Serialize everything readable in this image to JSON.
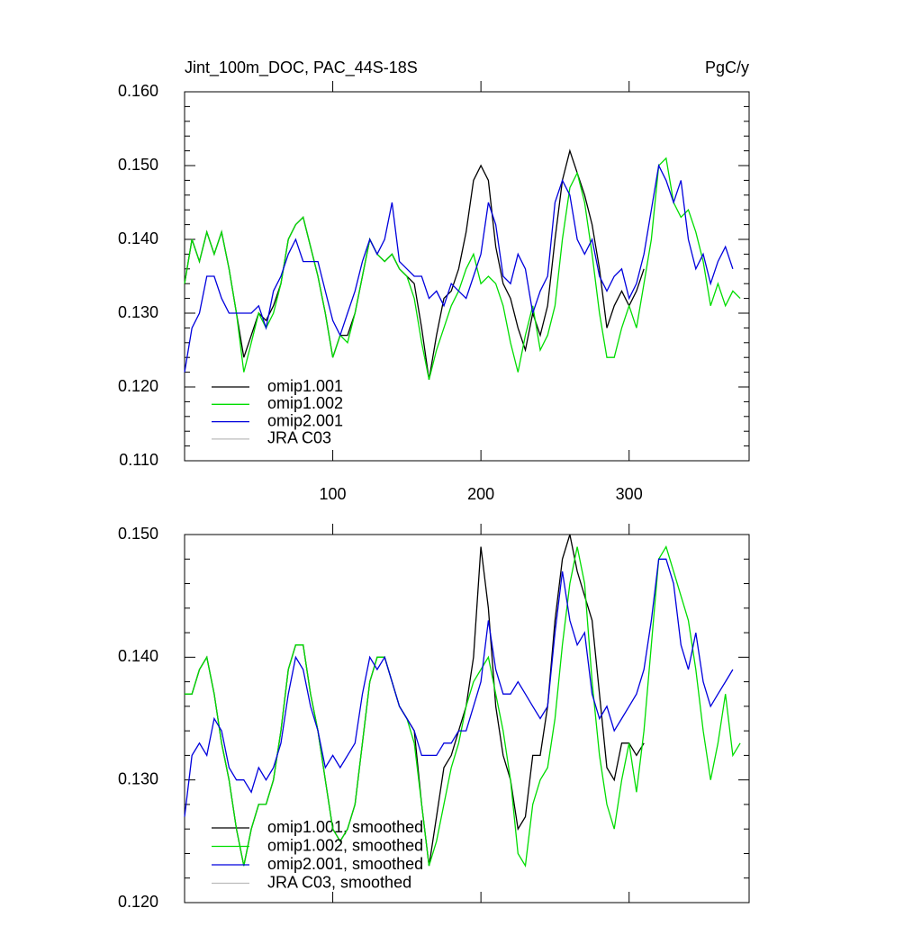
{
  "chart_data": [
    {
      "type": "line",
      "title": "Jint_100m_DOC, PAC_44S-18S",
      "units": "PgC/y",
      "x": [
        0,
        5,
        10,
        15,
        20,
        25,
        30,
        35,
        40,
        45,
        50,
        55,
        60,
        65,
        70,
        75,
        80,
        85,
        90,
        95,
        100,
        105,
        110,
        115,
        120,
        125,
        130,
        135,
        140,
        145,
        150,
        155,
        160,
        165,
        170,
        175,
        180,
        185,
        190,
        195,
        200,
        205,
        210,
        215,
        220,
        225,
        230,
        235,
        240,
        245,
        250,
        255,
        260,
        265,
        270,
        275,
        280,
        285,
        290,
        295,
        300,
        305,
        310,
        315,
        320,
        325,
        330,
        335,
        340,
        345,
        350,
        355,
        360,
        365,
        370,
        375
      ],
      "xlim": [
        0,
        381
      ],
      "xticks": [
        100,
        200,
        300
      ],
      "ylim": [
        0.11,
        0.16
      ],
      "yticks": [
        {
          "value": 0.16,
          "label": "0.160"
        },
        {
          "value": 0.15,
          "label": "0.150"
        },
        {
          "value": 0.14,
          "label": "0.140"
        },
        {
          "value": 0.13,
          "label": "0.130"
        },
        {
          "value": 0.12,
          "label": "0.120"
        },
        {
          "value": 0.11,
          "label": "0.110"
        }
      ],
      "series": [
        {
          "name": "omip1.001",
          "color": "#000000",
          "values": [
            0.134,
            0.14,
            0.137,
            0.141,
            0.138,
            0.141,
            0.136,
            0.13,
            0.124,
            0.127,
            0.13,
            0.129,
            0.131,
            0.134,
            0.14,
            0.142,
            0.143,
            0.139,
            0.135,
            0.13,
            0.124,
            0.127,
            0.127,
            0.13,
            0.135,
            0.14,
            0.138,
            0.137,
            0.138,
            0.136,
            0.135,
            0.134,
            0.128,
            0.121,
            0.127,
            0.132,
            0.133,
            0.136,
            0.141,
            0.148,
            0.15,
            0.148,
            0.139,
            0.134,
            0.132,
            0.128,
            0.125,
            0.13,
            0.127,
            0.131,
            0.14,
            0.148,
            0.152,
            0.149,
            0.146,
            0.142,
            0.136,
            0.128,
            0.131,
            0.133,
            0.131,
            0.133,
            0.136,
            null,
            null,
            null,
            null,
            null,
            null,
            null,
            null,
            null,
            null,
            null,
            null,
            null
          ]
        },
        {
          "name": "omip1.002",
          "color": "#00dd00",
          "values": [
            0.134,
            0.14,
            0.137,
            0.141,
            0.138,
            0.141,
            0.136,
            0.13,
            0.122,
            0.126,
            0.13,
            0.128,
            0.13,
            0.134,
            0.14,
            0.142,
            0.143,
            0.139,
            0.135,
            0.13,
            0.124,
            0.127,
            0.126,
            0.13,
            0.135,
            0.14,
            0.138,
            0.137,
            0.138,
            0.136,
            0.135,
            0.132,
            0.126,
            0.121,
            0.125,
            0.128,
            0.131,
            0.133,
            0.136,
            0.138,
            0.134,
            0.135,
            0.134,
            0.131,
            0.126,
            0.122,
            0.127,
            0.131,
            0.125,
            0.127,
            0.131,
            0.14,
            0.147,
            0.149,
            0.145,
            0.138,
            0.13,
            0.124,
            0.124,
            0.128,
            0.131,
            0.128,
            0.134,
            0.14,
            0.15,
            0.151,
            0.145,
            0.143,
            0.144,
            0.141,
            0.137,
            0.131,
            0.134,
            0.131,
            0.133,
            0.132
          ]
        },
        {
          "name": "omip2.001",
          "color": "#0000dd",
          "values": [
            0.122,
            0.128,
            0.13,
            0.135,
            0.135,
            0.132,
            0.13,
            0.13,
            0.13,
            0.13,
            0.131,
            0.128,
            0.133,
            0.135,
            0.138,
            0.14,
            0.137,
            0.137,
            0.137,
            0.133,
            0.129,
            0.127,
            0.13,
            0.133,
            0.137,
            0.14,
            0.138,
            0.14,
            0.145,
            0.137,
            0.136,
            0.135,
            0.135,
            0.132,
            0.133,
            0.131,
            0.134,
            0.133,
            0.132,
            0.135,
            0.138,
            0.145,
            0.142,
            0.135,
            0.134,
            0.138,
            0.136,
            0.13,
            0.133,
            0.135,
            0.145,
            0.148,
            0.146,
            0.14,
            0.138,
            0.14,
            0.135,
            0.133,
            0.135,
            0.136,
            0.132,
            0.134,
            0.138,
            0.144,
            0.15,
            0.148,
            0.145,
            0.148,
            0.14,
            0.136,
            0.138,
            0.134,
            0.137,
            0.139,
            0.136,
            null
          ]
        },
        {
          "name": "JRA C03",
          "color": "#bbbbbb",
          "values": [
            null,
            null,
            null,
            null,
            null,
            null,
            null,
            null,
            null,
            null,
            null,
            null,
            null,
            null,
            null,
            null,
            null,
            null,
            null,
            null,
            null,
            null,
            null,
            null,
            null,
            null,
            null,
            null,
            null,
            null,
            null,
            null,
            null,
            null,
            null,
            null,
            null,
            null,
            null,
            null,
            null,
            null,
            null,
            null,
            null,
            null,
            null,
            null,
            null,
            null,
            null,
            null,
            null,
            null,
            null,
            null,
            null,
            null,
            null,
            null,
            null,
            null,
            null,
            null,
            null,
            null,
            null,
            null,
            null,
            null,
            null,
            null,
            null,
            null,
            null,
            null
          ]
        }
      ]
    },
    {
      "type": "line",
      "x": [
        0,
        5,
        10,
        15,
        20,
        25,
        30,
        35,
        40,
        45,
        50,
        55,
        60,
        65,
        70,
        75,
        80,
        85,
        90,
        95,
        100,
        105,
        110,
        115,
        120,
        125,
        130,
        135,
        140,
        145,
        150,
        155,
        160,
        165,
        170,
        175,
        180,
        185,
        190,
        195,
        200,
        205,
        210,
        215,
        220,
        225,
        230,
        235,
        240,
        245,
        250,
        255,
        260,
        265,
        270,
        275,
        280,
        285,
        290,
        295,
        300,
        305,
        310,
        315,
        320,
        325,
        330,
        335,
        340,
        345,
        350,
        355,
        360,
        365,
        370,
        375
      ],
      "xlim": [
        0,
        381
      ],
      "xticks": [
        100,
        200,
        300
      ],
      "ylim": [
        0.12,
        0.15
      ],
      "yticks": [
        {
          "value": 0.15,
          "label": "0.150"
        },
        {
          "value": 0.14,
          "label": "0.140"
        },
        {
          "value": 0.13,
          "label": "0.130"
        },
        {
          "value": 0.12,
          "label": "0.120"
        }
      ],
      "series": [
        {
          "name": "omip1.001, smoothed",
          "color": "#000000",
          "values": [
            0.137,
            0.137,
            0.139,
            0.14,
            0.137,
            0.133,
            0.13,
            0.126,
            0.123,
            0.126,
            0.128,
            0.128,
            0.13,
            0.134,
            0.139,
            0.141,
            0.141,
            0.137,
            0.134,
            0.13,
            0.126,
            0.125,
            0.126,
            0.128,
            0.133,
            0.138,
            0.14,
            0.14,
            0.138,
            0.136,
            0.135,
            0.134,
            0.128,
            0.123,
            0.127,
            0.131,
            0.132,
            0.134,
            0.136,
            0.14,
            0.149,
            0.144,
            0.136,
            0.132,
            0.13,
            0.126,
            0.127,
            0.132,
            0.132,
            0.136,
            0.143,
            0.148,
            0.15,
            0.147,
            0.145,
            0.143,
            0.137,
            0.131,
            0.13,
            0.133,
            0.133,
            0.132,
            0.133,
            null,
            null,
            null,
            null,
            null,
            null,
            null,
            null,
            null,
            null,
            null,
            null,
            null
          ]
        },
        {
          "name": "omip1.002, smoothed",
          "color": "#00dd00",
          "values": [
            0.137,
            0.137,
            0.139,
            0.14,
            0.137,
            0.133,
            0.13,
            0.126,
            0.123,
            0.126,
            0.128,
            0.128,
            0.13,
            0.134,
            0.139,
            0.141,
            0.141,
            0.137,
            0.134,
            0.13,
            0.126,
            0.125,
            0.126,
            0.128,
            0.133,
            0.138,
            0.14,
            0.14,
            0.138,
            0.136,
            0.135,
            0.133,
            0.128,
            0.123,
            0.125,
            0.128,
            0.131,
            0.133,
            0.136,
            0.138,
            0.139,
            0.14,
            0.137,
            0.134,
            0.13,
            0.124,
            0.123,
            0.128,
            0.13,
            0.131,
            0.135,
            0.141,
            0.146,
            0.149,
            0.146,
            0.138,
            0.132,
            0.128,
            0.126,
            0.13,
            0.133,
            0.129,
            0.134,
            0.141,
            0.148,
            0.149,
            0.147,
            0.145,
            0.143,
            0.139,
            0.134,
            0.13,
            0.133,
            0.137,
            0.132,
            0.133
          ]
        },
        {
          "name": "omip2.001, smoothed",
          "color": "#0000dd",
          "values": [
            0.127,
            0.132,
            0.133,
            0.132,
            0.135,
            0.134,
            0.131,
            0.13,
            0.13,
            0.129,
            0.131,
            0.13,
            0.131,
            0.133,
            0.137,
            0.14,
            0.139,
            0.136,
            0.134,
            0.131,
            0.132,
            0.131,
            0.132,
            0.133,
            0.137,
            0.14,
            0.139,
            0.14,
            0.138,
            0.136,
            0.135,
            0.134,
            0.132,
            0.132,
            0.132,
            0.133,
            0.133,
            0.134,
            0.134,
            0.136,
            0.138,
            0.143,
            0.139,
            0.137,
            0.137,
            0.138,
            0.137,
            0.136,
            0.135,
            0.136,
            0.142,
            0.147,
            0.143,
            0.141,
            0.142,
            0.137,
            0.135,
            0.136,
            0.134,
            0.135,
            0.136,
            0.137,
            0.139,
            0.143,
            0.148,
            0.148,
            0.146,
            0.141,
            0.139,
            0.142,
            0.138,
            0.136,
            0.137,
            0.138,
            0.139,
            null
          ]
        },
        {
          "name": "JRA C03, smoothed",
          "color": "#bbbbbb",
          "values": [
            null,
            null,
            null,
            null,
            null,
            null,
            null,
            null,
            null,
            null,
            null,
            null,
            null,
            null,
            null,
            null,
            null,
            null,
            null,
            null,
            null,
            null,
            null,
            null,
            null,
            null,
            null,
            null,
            null,
            null,
            null,
            null,
            null,
            null,
            null,
            null,
            null,
            null,
            null,
            null,
            null,
            null,
            null,
            null,
            null,
            null,
            null,
            null,
            null,
            null,
            null,
            null,
            null,
            null,
            null,
            null,
            null,
            null,
            null,
            null,
            null,
            null,
            null,
            null,
            null,
            null,
            null,
            null,
            null,
            null,
            null,
            null,
            null,
            null,
            null,
            null
          ]
        }
      ]
    }
  ]
}
